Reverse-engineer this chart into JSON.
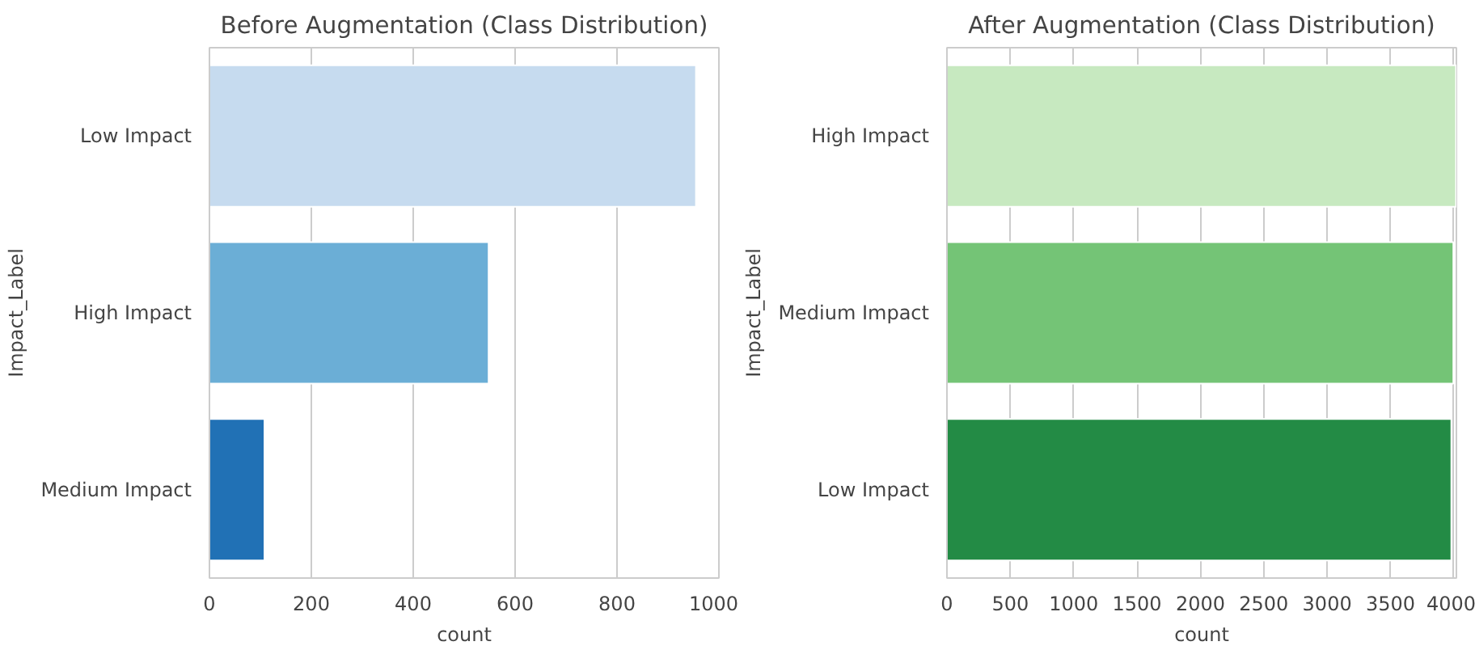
{
  "chart_data": [
    {
      "type": "bar",
      "orientation": "horizontal",
      "title": "Before Augmentation (Class Distribution)",
      "xlabel": "count",
      "ylabel": "Impact_Label",
      "categories": [
        "Low Impact",
        "High Impact",
        "Medium Impact"
      ],
      "values": [
        955,
        548,
        108
      ],
      "colors": [
        "#c6dbef",
        "#6baed6",
        "#2171b5"
      ],
      "xlim": [
        0,
        1000
      ],
      "xticks": [
        0,
        200,
        400,
        600,
        800,
        1000
      ],
      "grid": "x"
    },
    {
      "type": "bar",
      "orientation": "horizontal",
      "title": "After Augmentation (Class Distribution)",
      "xlabel": "count",
      "ylabel": "Impact_Label",
      "categories": [
        "High Impact",
        "Medium Impact",
        "Low Impact"
      ],
      "values": [
        4017,
        3996,
        3980
      ],
      "colors": [
        "#c7e9c0",
        "#74c476",
        "#238b45"
      ],
      "xlim": [
        0,
        4020
      ],
      "xticks": [
        0,
        500,
        1000,
        1500,
        2000,
        2500,
        3000,
        3500,
        4000
      ],
      "grid": "x"
    }
  ]
}
